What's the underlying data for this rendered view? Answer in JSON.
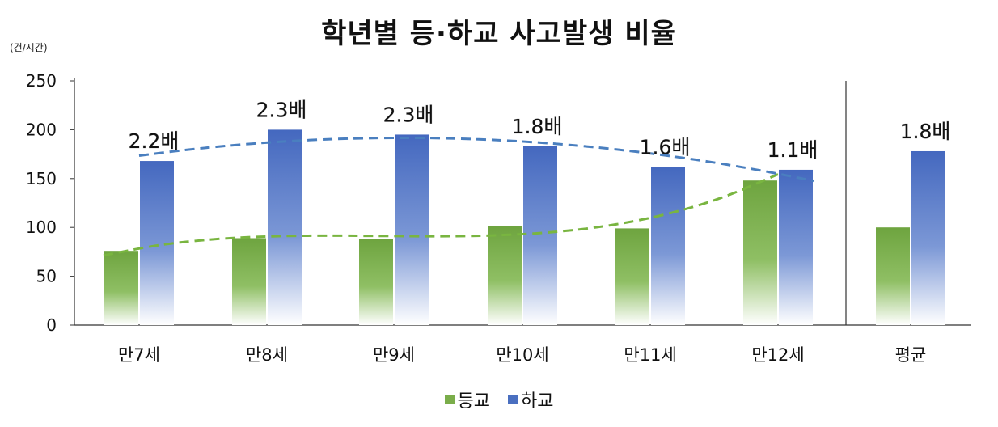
{
  "chart_data": {
    "type": "bar",
    "title": "학년별 등·하교 사고발생 비율",
    "unit": "(건/시간)",
    "categories": [
      "만7세",
      "만8세",
      "만9세",
      "만10세",
      "만11세",
      "만12세",
      "평균"
    ],
    "series": [
      {
        "name": "등교",
        "color": "#7aad4a",
        "values": [
          76,
          89,
          88,
          101,
          99,
          148,
          100
        ]
      },
      {
        "name": "하교",
        "color": "#4a6fc0",
        "values": [
          168,
          200,
          195,
          183,
          162,
          159,
          178
        ]
      }
    ],
    "ratio_labels": [
      "2.2배",
      "2.3배",
      "2.3배",
      "1.8배",
      "1.6배",
      "1.1배",
      "1.8배"
    ],
    "ylim": [
      0,
      250
    ],
    "yticks": [
      0,
      50,
      100,
      150,
      200,
      250
    ],
    "trendlines": [
      {
        "series": "등교",
        "style": "dashed",
        "color": "#79b540"
      },
      {
        "series": "하교",
        "style": "dashed",
        "color": "#4a7fbf"
      }
    ],
    "separator_before": "평균",
    "legend_position": "bottom"
  }
}
